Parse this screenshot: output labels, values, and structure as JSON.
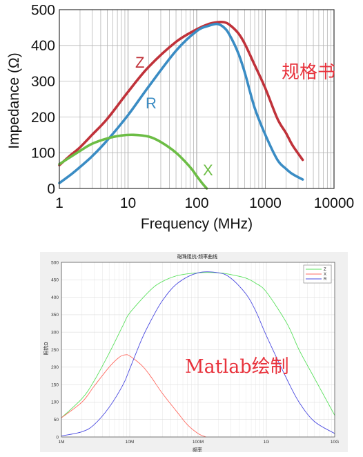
{
  "colors": {
    "top_Z": "#c0323a",
    "top_R": "#3a8cc4",
    "top_X": "#6cbd45",
    "bot_Z": "#59e05c",
    "bot_X": "#ff6a60",
    "bot_R": "#4a4ae0",
    "annotation": "#e8323c"
  },
  "annotations": {
    "top_note": "规格书",
    "bottom_note": "Matlab绘制"
  },
  "chart_data": [
    {
      "type": "line",
      "xscale": "log",
      "xlabel": "Frequency (MHz)",
      "ylabel": "Impedance (Ω)",
      "xlim": [
        1,
        10000
      ],
      "ylim": [
        0,
        500
      ],
      "xticks": [
        "1",
        "10",
        "100",
        "1000",
        "10000"
      ],
      "yticks": [
        "0",
        "100",
        "200",
        "300",
        "400",
        "500"
      ],
      "grid": true,
      "series_labels": [
        "Z",
        "R",
        "X"
      ],
      "series": [
        {
          "name": "Z",
          "x": [
            1,
            1.5,
            2,
            3,
            5,
            10,
            20,
            50,
            100,
            150,
            200,
            250,
            300,
            400,
            500,
            700,
            1000,
            1500,
            2000,
            2500,
            3500
          ],
          "y": [
            65,
            95,
            115,
            150,
            195,
            270,
            340,
            410,
            445,
            460,
            465,
            465,
            458,
            435,
            405,
            345,
            280,
            195,
            155,
            120,
            80
          ]
        },
        {
          "name": "R",
          "x": [
            1,
            1.5,
            2,
            3,
            5,
            10,
            20,
            50,
            100,
            150,
            200,
            250,
            300,
            400,
            500,
            700,
            1000,
            1500,
            2000,
            2500,
            3500
          ],
          "y": [
            15,
            40,
            60,
            90,
            135,
            205,
            285,
            385,
            440,
            455,
            460,
            450,
            430,
            380,
            325,
            225,
            150,
            80,
            55,
            40,
            25
          ]
        },
        {
          "name": "X",
          "x": [
            1,
            2,
            3,
            5,
            8,
            12,
            20,
            30,
            50,
            80,
            100,
            120,
            140
          ],
          "y": [
            68,
            105,
            125,
            140,
            148,
            150,
            145,
            130,
            100,
            60,
            35,
            15,
            0
          ]
        }
      ]
    },
    {
      "type": "line",
      "xscale": "log",
      "title": "磁珠阻抗-频率曲线",
      "xlabel": "频率",
      "ylabel": "阻抗Ω",
      "xlim": [
        1,
        10000
      ],
      "ylim": [
        0,
        500
      ],
      "xticks": [
        "1M",
        "10M",
        "100M",
        "1G",
        "10G"
      ],
      "yticks": [
        "0",
        "50",
        "100",
        "150",
        "200",
        "250",
        "300",
        "350",
        "400",
        "450",
        "500"
      ],
      "grid": true,
      "legend": "top-right",
      "series": [
        {
          "name": "Z",
          "x": [
            1,
            2,
            3,
            5,
            8,
            10,
            20,
            30,
            50,
            100,
            200,
            300,
            500,
            700,
            1000,
            2000,
            3000,
            5000,
            10000
          ],
          "y": [
            55,
            110,
            160,
            240,
            320,
            355,
            420,
            445,
            462,
            470,
            470,
            465,
            455,
            440,
            415,
            325,
            250,
            170,
            62
          ]
        },
        {
          "name": "X",
          "x": [
            1,
            2,
            3,
            5,
            7,
            8.5,
            10,
            15,
            20,
            30,
            50,
            70,
            100,
            130
          ],
          "y": [
            55,
            100,
            145,
            200,
            228,
            235,
            232,
            205,
            175,
            125,
            70,
            35,
            10,
            0
          ]
        },
        {
          "name": "R",
          "x": [
            1,
            2,
            3,
            5,
            8,
            10,
            15,
            20,
            30,
            50,
            100,
            200,
            300,
            500,
            700,
            1000,
            2000,
            3000,
            5000,
            10000
          ],
          "y": [
            3,
            15,
            35,
            85,
            150,
            195,
            280,
            330,
            390,
            440,
            470,
            470,
            455,
            410,
            360,
            290,
            165,
            100,
            45,
            10
          ]
        }
      ]
    }
  ]
}
